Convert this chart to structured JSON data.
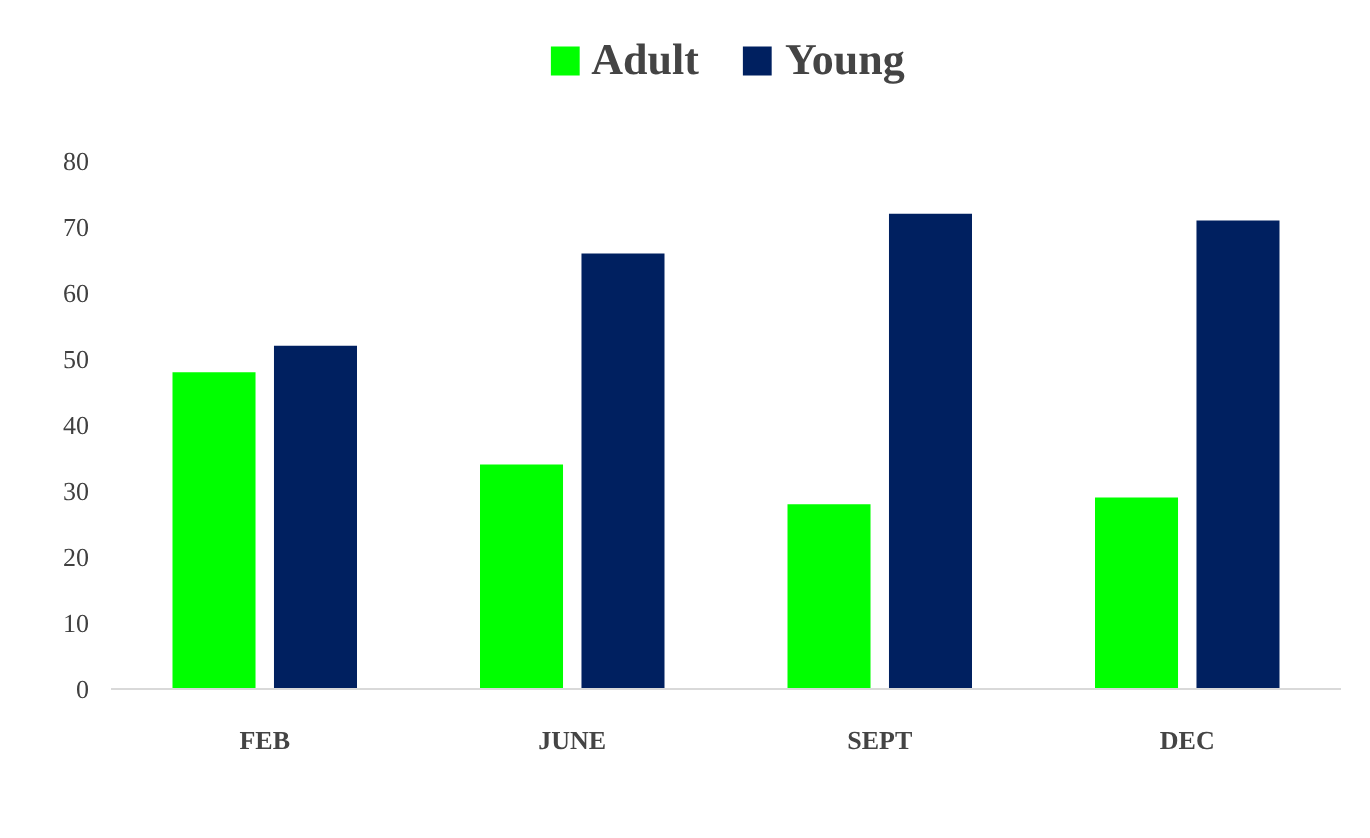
{
  "chart_data": {
    "type": "bar",
    "categories": [
      "FEB",
      "JUNE",
      "SEPT",
      "DEC"
    ],
    "series": [
      {
        "name": "Adult",
        "color": "#00ff00",
        "values": [
          48,
          34,
          28,
          29
        ]
      },
      {
        "name": "Young",
        "color": "#002060",
        "values": [
          52,
          66,
          72,
          71
        ]
      }
    ],
    "ylim": [
      0,
      80
    ],
    "yticks": [
      0,
      10,
      20,
      30,
      40,
      50,
      60,
      70,
      80
    ],
    "grid": false,
    "legend": "top"
  }
}
